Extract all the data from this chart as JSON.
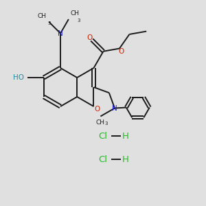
{
  "background_color": "#e0e0e0",
  "bond_color": "#1a1a1a",
  "nitrogen_color": "#1a1acc",
  "oxygen_color": "#cc2200",
  "hocl_color": "#22bb22",
  "teal_color": "#228899",
  "figsize": [
    3.0,
    3.0
  ],
  "dpi": 100,
  "lw": 1.4,
  "hcl1": [
    150,
    102
  ],
  "hcl2": [
    150,
    68
  ]
}
